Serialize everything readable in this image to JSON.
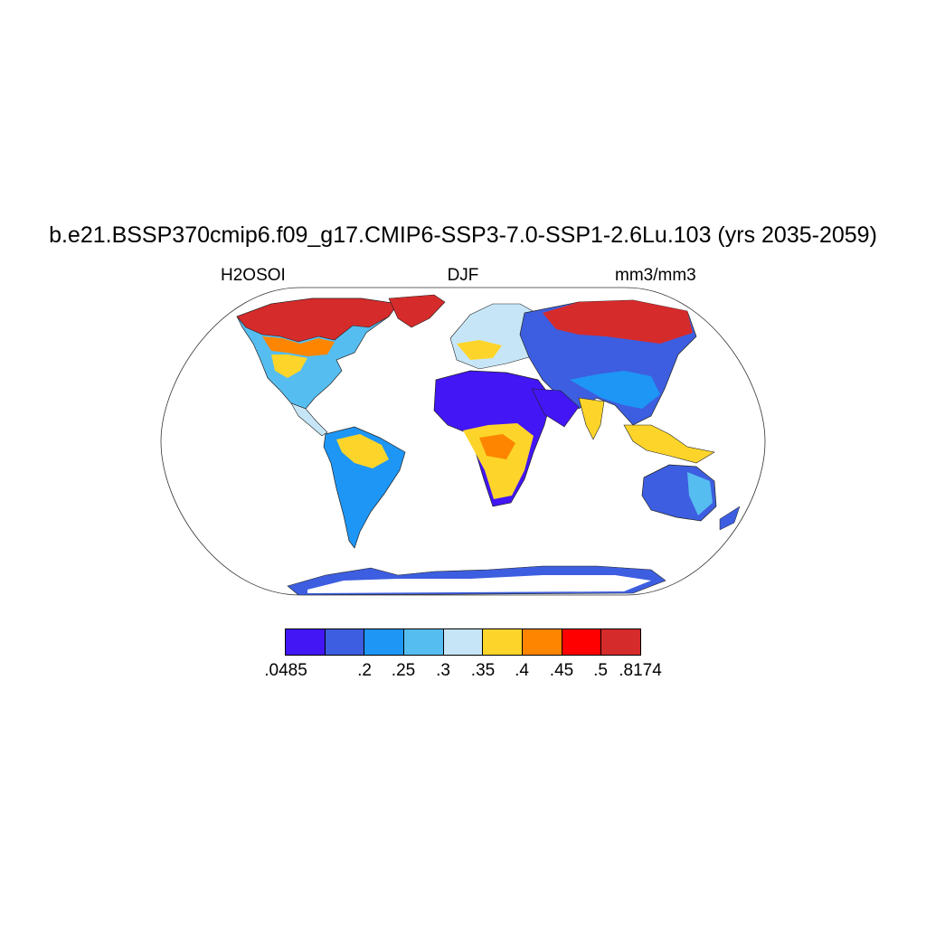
{
  "title": "b.e21.BSSP370cmip6.f09_g17.CMIP6-SSP3-7.0-SSP1-2.6Lu.103 (yrs 2035-2059)",
  "left_label": "H2OSOI",
  "center_label": "DJF",
  "right_label": "mm3/mm3",
  "colorbar": {
    "colors": [
      "#4216f5",
      "#3d5ee0",
      "#1e96f5",
      "#56bdf0",
      "#c6e6f7",
      "#fdd52a",
      "#fd8500",
      "#ff0000",
      "#d52b2b"
    ],
    "labels": [
      ".0485",
      ".2",
      ".25",
      ".3",
      ".35",
      ".4",
      ".45",
      ".5",
      ".8174"
    ]
  }
}
